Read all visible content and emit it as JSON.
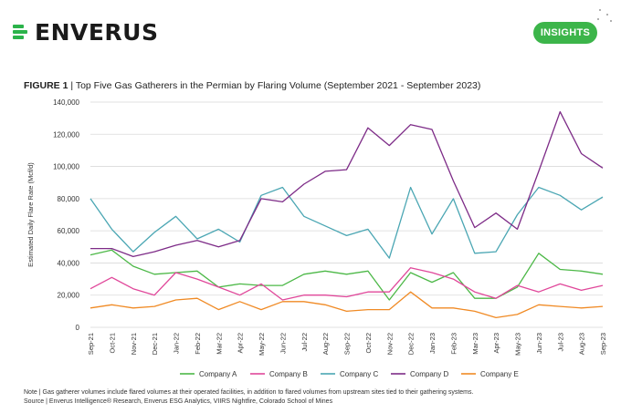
{
  "header": {
    "logo_text": "ENVERUS",
    "insights_label": "INSIGHTS"
  },
  "figure": {
    "label": "FIGURE 1",
    "separator": " | ",
    "title": "Top Five Gas Gatherers in the Permian by Flaring Volume (September 2021 - September 2023)"
  },
  "footnote": {
    "note": "Note | Gas gatherer volumes include flared volumes at their operated facilities, in addition to flared volumes from upstream sites tied to their gathering systems.",
    "source": "Source | Enverus Intelligence® Research, Enverus ESG Analytics, VIIRS Nightfire, Colorado School of Mines"
  },
  "colors": {
    "brand_green": "#3cb54a",
    "grid": "#d9d9d9"
  },
  "chart_data": {
    "type": "line",
    "title": "Top Five Gas Gatherers in the Permian by Flaring Volume (September 2021 - September 2023)",
    "ylabel": "Estimated Daily Flare Rate (Mcf/d)",
    "xlabel": "",
    "ylim": [
      0,
      140000
    ],
    "yticks": [
      "0",
      "20,000",
      "40,000",
      "60,000",
      "80,000",
      "100,000",
      "120,000",
      "140,000"
    ],
    "grid": true,
    "legend_position": "bottom",
    "x": [
      "Sep-21",
      "Oct-21",
      "Nov-21",
      "Dec-21",
      "Jan-22",
      "Feb-22",
      "Mar-22",
      "Apr-22",
      "May-22",
      "Jun-22",
      "Jul-22",
      "Aug-22",
      "Sep-22",
      "Oct-22",
      "Nov-22",
      "Dec-22",
      "Jan-23",
      "Feb-23",
      "Mar-23",
      "Apr-23",
      "May-23",
      "Jun-23",
      "Jul-23",
      "Aug-23",
      "Sep-23"
    ],
    "series": [
      {
        "name": "Company A",
        "color": "#4cb847",
        "values": [
          45000,
          48000,
          38000,
          33000,
          34000,
          35000,
          25000,
          27000,
          26000,
          26000,
          33000,
          35000,
          33000,
          35000,
          17000,
          34000,
          28000,
          34000,
          18000,
          18000,
          25000,
          46000,
          36000,
          35000,
          33000
        ]
      },
      {
        "name": "Company B",
        "color": "#e0479a",
        "values": [
          24000,
          31000,
          24000,
          20000,
          34000,
          30000,
          25000,
          20000,
          27000,
          17000,
          20000,
          20000,
          19000,
          22000,
          22000,
          37000,
          34000,
          30000,
          22000,
          18000,
          26000,
          22000,
          27000,
          23000,
          26000
        ]
      },
      {
        "name": "Company C",
        "color": "#4aa6b3",
        "values": [
          80000,
          61000,
          47000,
          59000,
          69000,
          55000,
          61000,
          53000,
          82000,
          87000,
          69000,
          63000,
          57000,
          61000,
          43000,
          87000,
          58000,
          80000,
          46000,
          47000,
          70000,
          87000,
          82000,
          73000,
          81000
        ]
      },
      {
        "name": "Company D",
        "color": "#7d2b87",
        "values": [
          49000,
          49000,
          44000,
          47000,
          51000,
          54000,
          50000,
          54000,
          80000,
          78000,
          89000,
          97000,
          98000,
          124000,
          113000,
          126000,
          123000,
          91000,
          62000,
          71000,
          61000,
          97000,
          134000,
          108000,
          99000
        ]
      },
      {
        "name": "Company E",
        "color": "#f08a24",
        "values": [
          12000,
          14000,
          12000,
          13000,
          17000,
          18000,
          11000,
          16000,
          11000,
          16000,
          16000,
          14000,
          10000,
          11000,
          11000,
          22000,
          12000,
          12000,
          10000,
          6000,
          8000,
          14000,
          13000,
          12000,
          13000
        ]
      }
    ]
  }
}
